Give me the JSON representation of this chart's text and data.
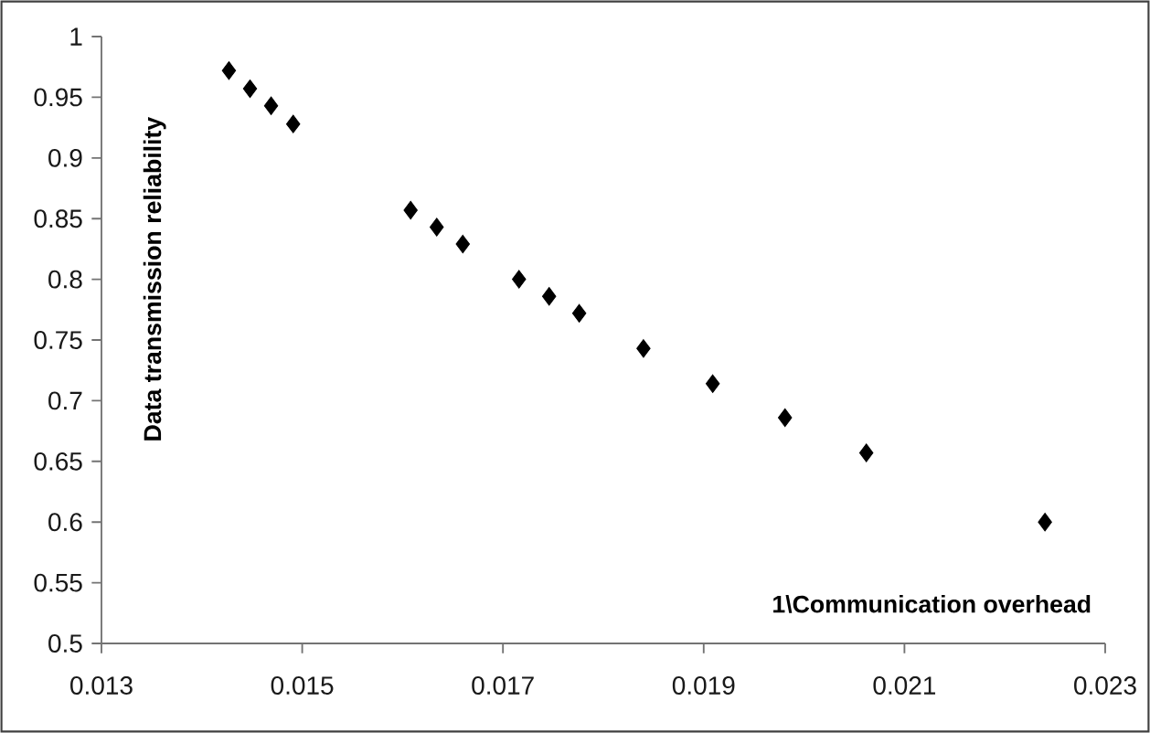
{
  "chart_data": {
    "type": "scatter",
    "xlabel": "1\\Communication overhead",
    "ylabel": "Data transmission reliability",
    "marker": "diamond",
    "grid": false,
    "series": [
      {
        "color": "#000000",
        "x": [
          0.01427,
          0.01448,
          0.01469,
          0.01491,
          0.01608,
          0.01634,
          0.0166,
          0.01716,
          0.01746,
          0.01776,
          0.0184,
          0.01909,
          0.01981,
          0.02062,
          0.0224
        ],
        "values": [
          0.972,
          0.957,
          0.943,
          0.928,
          0.857,
          0.843,
          0.829,
          0.8,
          0.786,
          0.772,
          0.743,
          0.714,
          0.686,
          0.657,
          0.6
        ]
      }
    ],
    "xlim": [
      0.013,
      0.023
    ],
    "xticks": [
      0.013,
      0.015,
      0.017,
      0.019,
      0.021,
      0.023
    ],
    "ylim": [
      0.5,
      1
    ],
    "yticks": [
      0.5,
      0.55,
      0.6,
      0.65,
      0.7,
      0.75,
      0.8,
      0.85,
      0.9,
      0.95,
      1
    ]
  }
}
